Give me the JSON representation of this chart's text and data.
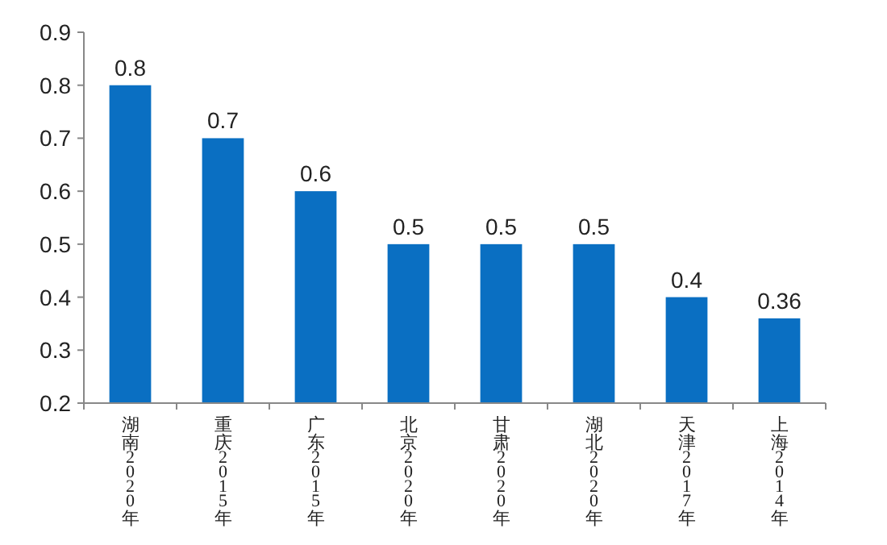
{
  "chart_data": {
    "type": "bar",
    "categories": [
      "湖南2020年",
      "重庆2015年",
      "广东2015年",
      "北京2020年",
      "甘肃2020年",
      "湖北2020年",
      "天津2017年",
      "上海2014年"
    ],
    "values": [
      0.8,
      0.7,
      0.6,
      0.5,
      0.5,
      0.5,
      0.4,
      0.36
    ],
    "color": "#0a6fc2",
    "ylim": [
      0.2,
      0.9
    ],
    "yticks": [
      0.2,
      0.3,
      0.4,
      0.5,
      0.6,
      0.7,
      0.8,
      0.9
    ],
    "data_labels": true,
    "grid": false
  }
}
